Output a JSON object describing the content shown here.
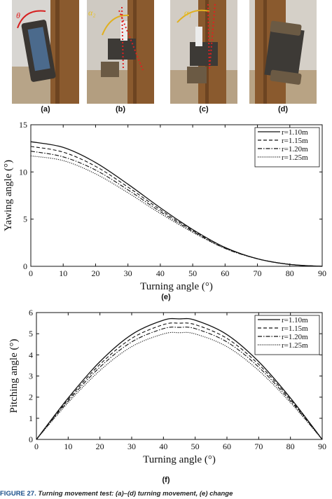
{
  "photos": [
    {
      "label": "(a)",
      "angle_symbol": "θ"
    },
    {
      "label": "(b)",
      "angle_symbol": "α₂"
    },
    {
      "label": "(c)",
      "angle_symbol": "α₁"
    },
    {
      "label": "(d)",
      "angle_symbol": ""
    }
  ],
  "chart_data": [
    {
      "type": "line",
      "sublabel": "(e)",
      "xlabel": "Turning angle (°)",
      "ylabel": "Yawing angle (°)",
      "xlim": [
        0,
        90
      ],
      "ylim": [
        0,
        15
      ],
      "xticks": [
        "0",
        "10",
        "20",
        "30",
        "40",
        "50",
        "60",
        "70",
        "80",
        "90"
      ],
      "yticks": [
        "0",
        "5",
        "10",
        "15"
      ],
      "legend_position": "top-right",
      "grid": false,
      "x": [
        0,
        10,
        20,
        30,
        40,
        50,
        60,
        70,
        80,
        90
      ],
      "series": [
        {
          "name": "r=1.10m",
          "style": "solid",
          "values": [
            13.2,
            12.6,
            11.0,
            8.7,
            6.2,
            3.9,
            2.0,
            0.8,
            0.2,
            0.0
          ]
        },
        {
          "name": "r=1.15m",
          "style": "dashed",
          "values": [
            12.7,
            12.1,
            10.6,
            8.4,
            6.0,
            3.8,
            2.0,
            0.8,
            0.2,
            0.0
          ]
        },
        {
          "name": "r=1.20m",
          "style": "dashdot",
          "values": [
            12.2,
            11.6,
            10.2,
            8.1,
            5.8,
            3.7,
            1.9,
            0.8,
            0.2,
            0.0
          ]
        },
        {
          "name": "r=1.25m",
          "style": "dotted",
          "values": [
            11.7,
            11.2,
            9.8,
            7.8,
            5.6,
            3.6,
            1.9,
            0.8,
            0.2,
            0.0
          ]
        }
      ]
    },
    {
      "type": "line",
      "sublabel": "(f)",
      "xlabel": "Turning angle (°)",
      "ylabel": "Pitching angle (°)",
      "xlim": [
        0,
        90
      ],
      "ylim": [
        0,
        6
      ],
      "xticks": [
        "0",
        "10",
        "20",
        "30",
        "40",
        "50",
        "60",
        "70",
        "80",
        "90"
      ],
      "yticks": [
        "0",
        "1",
        "2",
        "3",
        "4",
        "5",
        "6"
      ],
      "legend_position": "top-right",
      "grid": false,
      "x": [
        0,
        10,
        20,
        30,
        40,
        45,
        50,
        60,
        70,
        80,
        90
      ],
      "series": [
        {
          "name": "r=1.10m",
          "style": "solid",
          "values": [
            0,
            1.96,
            3.68,
            4.96,
            5.64,
            5.7,
            5.64,
            4.96,
            3.68,
            1.96,
            0
          ]
        },
        {
          "name": "r=1.15m",
          "style": "dashed",
          "values": [
            0,
            1.89,
            3.55,
            4.78,
            5.43,
            5.5,
            5.43,
            4.78,
            3.55,
            1.89,
            0
          ]
        },
        {
          "name": "r=1.20m",
          "style": "dashdot",
          "values": [
            0,
            1.82,
            3.42,
            4.61,
            5.24,
            5.3,
            5.24,
            4.61,
            3.42,
            1.82,
            0
          ]
        },
        {
          "name": "r=1.25m",
          "style": "dotted",
          "values": [
            0,
            1.74,
            3.26,
            4.39,
            4.99,
            5.05,
            4.99,
            4.39,
            3.26,
            1.74,
            0
          ]
        }
      ]
    }
  ],
  "caption": {
    "figure": "FIGURE 27.",
    "text": "Turning movement test: (a)–(d) turning movement, (e) change"
  },
  "colors": {
    "wood": "#8a5a2e",
    "floor": "#b8a48a",
    "caption_blue": "#1a4f8a"
  }
}
